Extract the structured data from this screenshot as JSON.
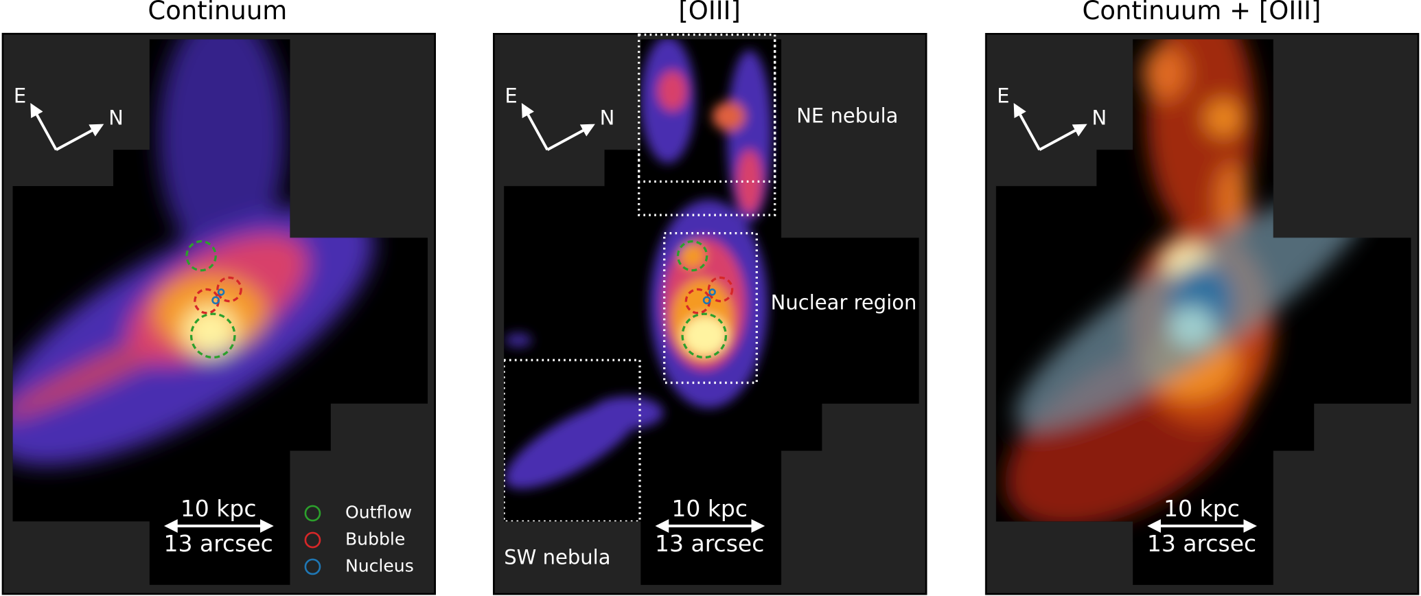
{
  "panels": [
    {
      "title": "Continuum",
      "compass": {
        "east": "E",
        "north": "N"
      },
      "scale_bar": {
        "physical": "10 kpc",
        "angular": "13 arcsec"
      }
    },
    {
      "title": "[OIII]",
      "compass": {
        "east": "E",
        "north": "N"
      },
      "scale_bar": {
        "physical": "10 kpc",
        "angular": "13 arcsec"
      }
    },
    {
      "title": "Continuum + [OIII]",
      "compass": {
        "east": "E",
        "north": "N"
      },
      "scale_bar": {
        "physical": "10 kpc",
        "angular": "13 arcsec"
      }
    }
  ],
  "legend": [
    {
      "label": "Outflow",
      "color": "#2ca02c"
    },
    {
      "label": "Bubble",
      "color": "#d62728"
    },
    {
      "label": "Nucleus",
      "color": "#1f77b4"
    }
  ],
  "regions": [
    "NE nebula",
    "Nuclear region",
    "SW nebula"
  ]
}
